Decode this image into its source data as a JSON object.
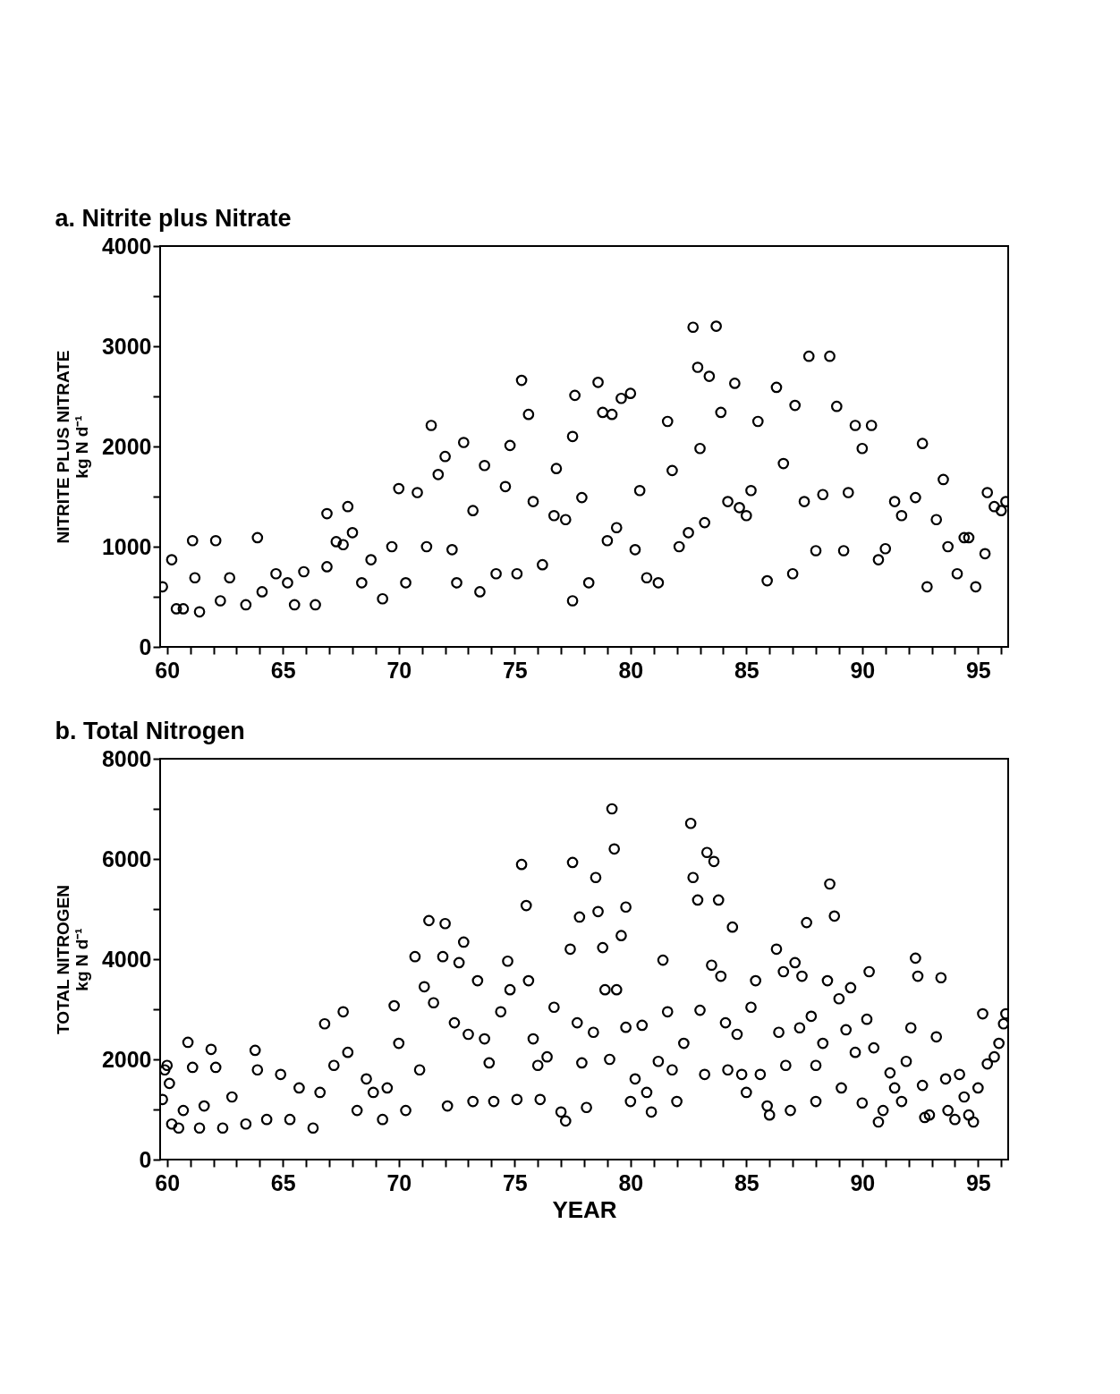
{
  "chart_data": [
    {
      "type": "scatter",
      "title": "a.  Nitrite plus Nitrate",
      "ylabel": "NITRITE PLUS NITRATE\nkg N d⁻¹",
      "marker": "circle",
      "grid": false,
      "xlim": [
        59.7,
        96.3
      ],
      "ylim": [
        0,
        4000
      ],
      "xticks": [
        60,
        {
          "value": 61,
          "label": null
        },
        {
          "value": 62,
          "label": null
        },
        {
          "value": 63,
          "label": null
        },
        {
          "value": 64,
          "label": null
        },
        65,
        {
          "value": 66,
          "label": null
        },
        {
          "value": 67,
          "label": null
        },
        {
          "value": 68,
          "label": null
        },
        {
          "value": 69,
          "label": null
        },
        70,
        {
          "value": 71,
          "label": null
        },
        {
          "value": 72,
          "label": null
        },
        {
          "value": 73,
          "label": null
        },
        {
          "value": 74,
          "label": null
        },
        75,
        {
          "value": 76,
          "label": null
        },
        {
          "value": 77,
          "label": null
        },
        {
          "value": 78,
          "label": null
        },
        {
          "value": 79,
          "label": null
        },
        80,
        {
          "value": 81,
          "label": null
        },
        {
          "value": 82,
          "label": null
        },
        {
          "value": 83,
          "label": null
        },
        {
          "value": 84,
          "label": null
        },
        85,
        {
          "value": 86,
          "label": null
        },
        {
          "value": 87,
          "label": null
        },
        {
          "value": 88,
          "label": null
        },
        {
          "value": 89,
          "label": null
        },
        90,
        {
          "value": 91,
          "label": null
        },
        {
          "value": 92,
          "label": null
        },
        {
          "value": 93,
          "label": null
        },
        {
          "value": 94,
          "label": null
        },
        95,
        {
          "value": 96,
          "label": null
        }
      ],
      "yticks": [
        0,
        {
          "value": 500,
          "label": null
        },
        1000,
        {
          "value": 1500,
          "label": null
        },
        2000,
        {
          "value": 2500,
          "label": null
        },
        3000,
        {
          "value": 3500,
          "label": null
        },
        4000
      ],
      "series": [
        {
          "color": "#000000",
          "x": [
            59.8,
            60.2,
            60.4,
            60.7,
            61.1,
            61.2,
            61.4,
            62.1,
            62.3,
            62.7,
            63.4,
            63.9,
            64.1,
            64.7,
            65.2,
            65.5,
            65.9,
            66.4,
            66.9,
            66.9,
            67.3,
            67.6,
            67.8,
            68.0,
            68.4,
            68.8,
            69.3,
            69.7,
            70.0,
            70.3,
            70.8,
            71.2,
            71.4,
            71.7,
            72.0,
            72.3,
            72.5,
            72.8,
            73.2,
            73.5,
            73.7,
            74.2,
            74.6,
            74.8,
            75.1,
            75.3,
            75.6,
            75.8,
            76.2,
            76.7,
            76.8,
            77.2,
            77.5,
            77.5,
            77.6,
            77.9,
            78.2,
            78.6,
            78.8,
            79.0,
            79.2,
            79.4,
            79.6,
            80.0,
            80.2,
            80.4,
            80.7,
            81.2,
            81.6,
            81.8,
            82.1,
            82.5,
            82.7,
            82.9,
            83.0,
            83.2,
            83.4,
            83.7,
            83.9,
            84.2,
            84.5,
            84.7,
            85.0,
            85.2,
            85.5,
            85.9,
            86.3,
            86.6,
            87.0,
            87.1,
            87.5,
            87.7,
            88.0,
            88.3,
            88.6,
            88.9,
            89.2,
            89.4,
            89.7,
            90.0,
            90.4,
            90.7,
            91.0,
            91.4,
            91.7,
            92.3,
            92.6,
            92.8,
            93.2,
            93.5,
            93.7,
            94.1,
            94.4,
            94.6,
            94.9,
            95.3,
            95.4,
            95.7,
            96.0,
            96.2
          ],
          "values": [
            600,
            870,
            380,
            380,
            1060,
            690,
            350,
            1060,
            460,
            690,
            420,
            1090,
            550,
            730,
            640,
            420,
            750,
            420,
            800,
            1330,
            1050,
            1020,
            1400,
            1140,
            640,
            870,
            480,
            1000,
            1580,
            640,
            1540,
            1000,
            2210,
            1720,
            1900,
            970,
            640,
            2040,
            1360,
            550,
            1810,
            730,
            1600,
            2010,
            730,
            2660,
            2320,
            1450,
            820,
            1310,
            1780,
            1270,
            460,
            2100,
            2510,
            1490,
            640,
            2640,
            2340,
            1060,
            2320,
            1190,
            2480,
            2530,
            970,
            1560,
            690,
            640,
            2250,
            1760,
            1000,
            1140,
            3190,
            2790,
            1980,
            1240,
            2700,
            3200,
            2340,
            1450,
            2630,
            1390,
            1310,
            1560,
            2250,
            660,
            2590,
            1830,
            730,
            2410,
            1450,
            2900,
            960,
            1520,
            2900,
            2400,
            960,
            1540,
            2210,
            1980,
            2210,
            870,
            980,
            1450,
            1310,
            1490,
            2030,
            600,
            1270,
            1670,
            1000,
            730,
            1090,
            1090,
            600,
            930,
            1540,
            1400,
            1360,
            1450
          ]
        }
      ]
    },
    {
      "type": "scatter",
      "title": "b.  Total Nitrogen",
      "xlabel": "YEAR",
      "ylabel": "TOTAL NITROGEN\nkg N d⁻¹",
      "marker": "circle",
      "grid": false,
      "xlim": [
        59.7,
        96.3
      ],
      "ylim": [
        0,
        8000
      ],
      "xticks": [
        60,
        {
          "value": 61,
          "label": null
        },
        {
          "value": 62,
          "label": null
        },
        {
          "value": 63,
          "label": null
        },
        {
          "value": 64,
          "label": null
        },
        65,
        {
          "value": 66,
          "label": null
        },
        {
          "value": 67,
          "label": null
        },
        {
          "value": 68,
          "label": null
        },
        {
          "value": 69,
          "label": null
        },
        70,
        {
          "value": 71,
          "label": null
        },
        {
          "value": 72,
          "label": null
        },
        {
          "value": 73,
          "label": null
        },
        {
          "value": 74,
          "label": null
        },
        75,
        {
          "value": 76,
          "label": null
        },
        {
          "value": 77,
          "label": null
        },
        {
          "value": 78,
          "label": null
        },
        {
          "value": 79,
          "label": null
        },
        80,
        {
          "value": 81,
          "label": null
        },
        {
          "value": 82,
          "label": null
        },
        {
          "value": 83,
          "label": null
        },
        {
          "value": 84,
          "label": null
        },
        85,
        {
          "value": 86,
          "label": null
        },
        {
          "value": 87,
          "label": null
        },
        {
          "value": 88,
          "label": null
        },
        {
          "value": 89,
          "label": null
        },
        90,
        {
          "value": 91,
          "label": null
        },
        {
          "value": 92,
          "label": null
        },
        {
          "value": 93,
          "label": null
        },
        {
          "value": 94,
          "label": null
        },
        95,
        {
          "value": 96,
          "label": null
        }
      ],
      "yticks": [
        0,
        {
          "value": 1000,
          "label": null
        },
        2000,
        {
          "value": 3000,
          "label": null
        },
        4000,
        {
          "value": 5000,
          "label": null
        },
        6000,
        {
          "value": 7000,
          "label": null
        },
        8000
      ],
      "series": [
        {
          "color": "#000000",
          "x": [
            59.8,
            59.9,
            60.0,
            60.1,
            60.2,
            60.5,
            60.7,
            60.9,
            61.1,
            61.4,
            61.6,
            61.9,
            62.1,
            62.4,
            62.8,
            63.4,
            63.8,
            63.9,
            64.3,
            64.9,
            65.3,
            65.7,
            66.3,
            66.6,
            66.8,
            67.2,
            67.6,
            67.8,
            68.2,
            68.6,
            68.9,
            69.3,
            69.5,
            69.8,
            70.0,
            70.3,
            70.7,
            70.9,
            71.1,
            71.3,
            71.5,
            71.9,
            72.0,
            72.1,
            72.4,
            72.6,
            72.8,
            73.0,
            73.2,
            73.4,
            73.7,
            73.9,
            74.1,
            74.4,
            74.7,
            74.8,
            75.1,
            75.3,
            75.5,
            75.6,
            75.8,
            76.0,
            76.1,
            76.4,
            76.7,
            77.0,
            77.2,
            77.4,
            77.5,
            77.7,
            77.8,
            77.9,
            78.1,
            78.4,
            78.5,
            78.6,
            78.8,
            78.9,
            79.1,
            79.2,
            79.3,
            79.4,
            79.6,
            79.8,
            79.8,
            80.0,
            80.2,
            80.5,
            80.7,
            80.9,
            81.2,
            81.4,
            81.6,
            81.8,
            82.0,
            82.3,
            82.6,
            82.7,
            82.9,
            83.0,
            83.2,
            83.3,
            83.5,
            83.6,
            83.8,
            83.9,
            84.1,
            84.2,
            84.4,
            84.6,
            84.8,
            85.0,
            85.2,
            85.4,
            85.6,
            85.9,
            86.0,
            86.3,
            86.4,
            86.6,
            86.7,
            86.9,
            87.1,
            87.3,
            87.4,
            87.6,
            87.8,
            88.0,
            88.0,
            88.3,
            88.5,
            88.6,
            88.8,
            89.0,
            89.1,
            89.3,
            89.5,
            89.7,
            90.0,
            90.2,
            90.3,
            90.5,
            90.7,
            90.9,
            91.2,
            91.4,
            91.7,
            91.9,
            92.1,
            92.3,
            92.4,
            92.6,
            92.7,
            92.9,
            93.2,
            93.4,
            93.6,
            93.7,
            94.0,
            94.2,
            94.4,
            94.6,
            94.8,
            95.0,
            95.2,
            95.4,
            95.7,
            95.9,
            96.1,
            96.2
          ],
          "values": [
            1200,
            1790,
            1880,
            1520,
            710,
            630,
            980,
            2340,
            1840,
            630,
            1070,
            2200,
            1840,
            630,
            1250,
            710,
            2180,
            1790,
            800,
            1700,
            800,
            1430,
            630,
            1340,
            2710,
            1880,
            2950,
            2140,
            980,
            1610,
            1340,
            800,
            1430,
            3070,
            2320,
            980,
            4050,
            1790,
            3450,
            4770,
            3130,
            4050,
            4710,
            1070,
            2730,
            3930,
            4340,
            2500,
            1160,
            3570,
            2410,
            1930,
            1160,
            2950,
            3960,
            3390,
            1200,
            5890,
            5070,
            3570,
            2410,
            1880,
            1200,
            2050,
            3040,
            950,
            770,
            4200,
            5930,
            2730,
            4840,
            1930,
            1040,
            2540,
            5630,
            4950,
            4230,
            3390,
            2000,
            7000,
            6200,
            3390,
            4470,
            5040,
            2640,
            1160,
            1610,
            2680,
            1340,
            950,
            1960,
            3980,
            2950,
            1790,
            1160,
            2320,
            6710,
            5630,
            5180,
            2980,
            1700,
            6130,
            3880,
            5950,
            5180,
            3660,
            2730,
            1790,
            4640,
            2500,
            1700,
            1340,
            3040,
            3570,
            1700,
            1070,
            890,
            4200,
            2540,
            3750,
            1880,
            980,
            3930,
            2630,
            3660,
            4730,
            2860,
            1880,
            1160,
            2320,
            3570,
            5500,
            4860,
            3210,
            1430,
            2590,
            3430,
            2140,
            1130,
            2800,
            3750,
            2230,
            750,
            980,
            1730,
            1430,
            1160,
            1960,
            2630,
            4020,
            3660,
            1480,
            840,
            890,
            2450,
            3630,
            1610,
            980,
            800,
            1700,
            1250,
            890,
            750,
            1430,
            2910,
            1910,
            2050,
            2320,
            2710,
            2910
          ]
        }
      ]
    }
  ]
}
